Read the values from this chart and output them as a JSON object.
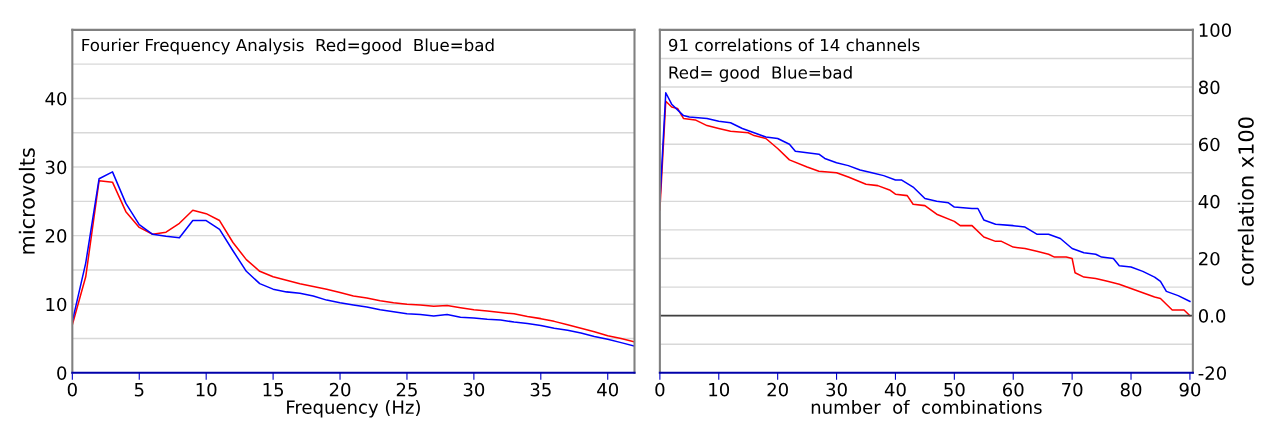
{
  "chart_data": [
    {
      "type": "line",
      "title": "Fourier Frequency Analysis  Red=good  Blue=bad",
      "xlabel": "Frequency (Hz)",
      "ylabel": "microvolts",
      "x": [
        0,
        1,
        2,
        3,
        4,
        5,
        6,
        7,
        8,
        9,
        10,
        11,
        12,
        13,
        14,
        15,
        16,
        17,
        18,
        19,
        20,
        21,
        22,
        23,
        24,
        25,
        26,
        27,
        28,
        29,
        30,
        31,
        32,
        33,
        34,
        35,
        36,
        37,
        38,
        39,
        40,
        41,
        42
      ],
      "series": [
        {
          "color": "#ff0000",
          "values": [
            7,
            14,
            28,
            27.8,
            23.5,
            21.2,
            20.2,
            20.5,
            21.8,
            23.7,
            23.2,
            22.2,
            19,
            16.5,
            14.8,
            14,
            13.5,
            13,
            12.6,
            12.2,
            11.7,
            11.2,
            10.9,
            10.5,
            10.2,
            10,
            9.9,
            9.7,
            9.8,
            9.5,
            9.2,
            9,
            8.8,
            8.6,
            8.2,
            7.9,
            7.5,
            7,
            6.5,
            6,
            5.4,
            5,
            4.5
          ]
        },
        {
          "color": "#0000ff",
          "values": [
            7.5,
            16,
            28.3,
            29.3,
            24.7,
            21.6,
            20.2,
            19.9,
            19.7,
            22.2,
            22.2,
            20.9,
            17.8,
            14.8,
            13,
            12.2,
            11.8,
            11.6,
            11.2,
            10.6,
            10.2,
            9.9,
            9.6,
            9.2,
            8.9,
            8.6,
            8.5,
            8.3,
            8.5,
            8.1,
            8,
            7.8,
            7.7,
            7.4,
            7.2,
            6.9,
            6.5,
            6.2,
            5.8,
            5.3,
            4.9,
            4.4,
            3.9
          ]
        }
      ],
      "xlim": [
        0,
        42
      ],
      "xticks": [
        0,
        5,
        10,
        15,
        20,
        25,
        30,
        35,
        40
      ],
      "ylim": [
        0,
        50
      ],
      "yticks": [
        0,
        {
          "value": 5,
          "label": null
        },
        10,
        {
          "value": 15,
          "label": null
        },
        20,
        {
          "value": 25,
          "label": null
        },
        30,
        {
          "value": 35,
          "label": null
        },
        40,
        {
          "value": 45,
          "label": null
        }
      ],
      "grid": "y"
    },
    {
      "type": "line",
      "title": "91 correlations of 14 channels",
      "subtitle": "Red= good  Blue=bad",
      "xlabel": "number  of  combinations",
      "ylabel": "correlation x100",
      "series": [
        {
          "color": "#ff0000",
          "x": [
            0,
            1,
            2,
            3,
            4,
            6,
            8,
            10,
            12,
            15,
            16,
            18,
            20,
            22,
            25,
            27,
            30,
            32,
            35,
            37,
            39,
            40,
            42,
            43,
            45,
            47,
            50,
            51,
            53,
            55,
            57,
            58,
            60,
            62,
            64,
            66,
            67,
            69,
            70,
            70.5,
            72,
            74,
            76,
            78,
            80,
            82,
            84,
            85,
            86,
            87,
            89,
            90
          ],
          "values": [
            37,
            75,
            73,
            72.5,
            69,
            68.5,
            66.5,
            65.5,
            64.5,
            64,
            63,
            62,
            58.5,
            54.5,
            52,
            50.5,
            50,
            48.5,
            46,
            45.5,
            44,
            42.5,
            42,
            39,
            38.5,
            35.5,
            33,
            31.5,
            31.5,
            27.5,
            26,
            26,
            24,
            23.5,
            22.5,
            21.5,
            20.5,
            20.5,
            20,
            15,
            13.5,
            13,
            12,
            11,
            9.5,
            8,
            6.5,
            6,
            4,
            2,
            2,
            0
          ]
        },
        {
          "color": "#0000ff",
          "x": [
            0,
            1,
            2,
            3,
            4,
            5,
            8,
            10,
            12,
            14,
            16,
            18,
            20,
            22,
            23,
            25,
            27,
            28,
            30,
            32,
            34,
            36,
            38,
            40,
            41,
            43,
            45,
            47,
            49,
            50,
            53,
            54,
            55,
            57,
            60,
            62,
            64,
            66,
            68,
            70,
            72,
            74,
            75,
            77,
            78,
            80,
            82,
            84,
            85,
            86,
            88,
            90
          ],
          "values": [
            40,
            78,
            74,
            72,
            70,
            69.5,
            69,
            68,
            67.5,
            65.5,
            64,
            62.5,
            62,
            60,
            57.5,
            57,
            56.5,
            55,
            53.5,
            52.5,
            51,
            50,
            49,
            47.5,
            47.5,
            45,
            41,
            40,
            39.5,
            38,
            37.5,
            37.5,
            33.5,
            32,
            31.5,
            31,
            28.5,
            28.5,
            27,
            23.5,
            22,
            21.5,
            20.5,
            20,
            17.5,
            17,
            15.5,
            13.5,
            12,
            8.5,
            7,
            5
          ]
        }
      ],
      "xlim": [
        0,
        90.5
      ],
      "xticks": [
        0,
        10,
        20,
        30,
        40,
        50,
        60,
        70,
        80,
        90
      ],
      "ylim": [
        -20,
        100
      ],
      "yticks": [
        -20,
        {
          "value": -10,
          "label": null
        },
        {
          "value": 0,
          "label": "0.0"
        },
        {
          "value": 10,
          "label": null
        },
        20,
        {
          "value": 30,
          "label": null
        },
        40,
        {
          "value": 50,
          "label": null
        },
        60,
        {
          "value": 70,
          "label": null
        },
        80,
        {
          "value": 90,
          "label": null
        },
        100
      ],
      "ref_lines": [
        {
          "axis": "y",
          "value": 0,
          "color": "#404040"
        }
      ],
      "grid": "y"
    }
  ]
}
